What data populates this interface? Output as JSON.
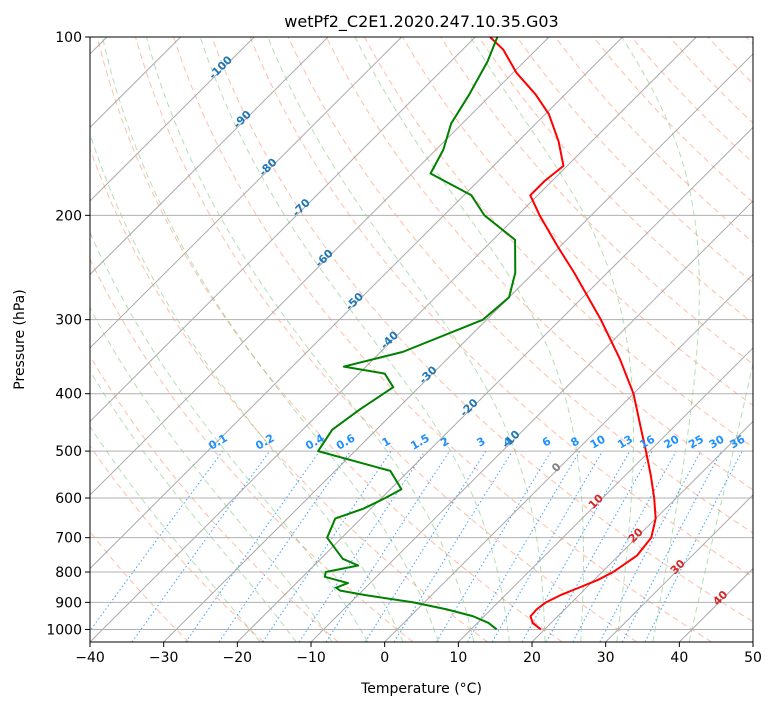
{
  "chart_data": {
    "type": "line",
    "title": "wetPf2_C2E1.2020.247.10.35.G03",
    "xlabel": "Temperature (°C)",
    "ylabel": "Pressure (hPa)",
    "xlim": [
      -40,
      50
    ],
    "ylim": [
      1050,
      100
    ],
    "y_scale": "log",
    "x_ticks": [
      -40,
      -30,
      -20,
      -10,
      0,
      10,
      20,
      30,
      40,
      50
    ],
    "x_tick_labels": [
      "−40",
      "−30",
      "−20",
      "−10",
      "0",
      "10",
      "20",
      "30",
      "40",
      "50"
    ],
    "y_ticks": [
      100,
      200,
      300,
      400,
      500,
      600,
      700,
      800,
      900,
      1000
    ],
    "y_tick_labels": [
      "100",
      "200",
      "300",
      "400",
      "500",
      "600",
      "700",
      "800",
      "900",
      "1000"
    ],
    "grid": true,
    "skew_factor": 35,
    "isotherm_labels": [
      "-100",
      "-90",
      "-80",
      "-70",
      "-60",
      "-50",
      "-40",
      "-30",
      "-20",
      "-10",
      "0",
      "10",
      "20",
      "30",
      "40"
    ],
    "mixing_ratio_labels": [
      "0.1",
      "0.2",
      "0.4",
      "0.6",
      "1",
      "1.5",
      "2",
      "3",
      "4",
      "6",
      "8",
      "10",
      "13",
      "16",
      "20",
      "25",
      "30",
      "36"
    ],
    "colors": {
      "temperature": "#ff0000",
      "dewpoint": "#008000",
      "isotherm_label_cold": "#1f77b4",
      "isotherm_label_zero": "#808080",
      "isotherm_label_warm": "#d62728",
      "mixing_ratio": "#1e90ff",
      "dry_adiabat": "#ff7f50",
      "moist_adiabat": "#2ca02c",
      "grid": "#b0b0b0"
    },
    "series": [
      {
        "name": "Temperature",
        "points": [
          [
            1000,
            19.5
          ],
          [
            975,
            17.5
          ],
          [
            950,
            16.3
          ],
          [
            925,
            16.2
          ],
          [
            900,
            16.5
          ],
          [
            875,
            17.5
          ],
          [
            850,
            19.0
          ],
          [
            825,
            20.5
          ],
          [
            800,
            21.5
          ],
          [
            775,
            22.0
          ],
          [
            750,
            22.5
          ],
          [
            700,
            22.0
          ],
          [
            650,
            20.0
          ],
          [
            600,
            17.0
          ],
          [
            550,
            13.5
          ],
          [
            500,
            9.5
          ],
          [
            450,
            5.0
          ],
          [
            400,
            0.0
          ],
          [
            350,
            -6.5
          ],
          [
            300,
            -14.5
          ],
          [
            250,
            -24.5
          ],
          [
            225,
            -30.5
          ],
          [
            200,
            -37.0
          ],
          [
            185,
            -41.0
          ],
          [
            175,
            -41.0
          ],
          [
            165,
            -40.5
          ],
          [
            150,
            -44.5
          ],
          [
            135,
            -49.5
          ],
          [
            125,
            -54.0
          ],
          [
            115,
            -59.5
          ],
          [
            105,
            -64.5
          ],
          [
            100,
            -68.0
          ]
        ]
      },
      {
        "name": "Dewpoint",
        "points": [
          [
            1000,
            13.5
          ],
          [
            975,
            11.5
          ],
          [
            950,
            8.5
          ],
          [
            925,
            4.0
          ],
          [
            900,
            -1.5
          ],
          [
            875,
            -9.0
          ],
          [
            860,
            -13.0
          ],
          [
            850,
            -14.0
          ],
          [
            835,
            -13.0
          ],
          [
            815,
            -17.0
          ],
          [
            800,
            -17.5
          ],
          [
            780,
            -14.0
          ],
          [
            760,
            -17.0
          ],
          [
            700,
            -22.0
          ],
          [
            650,
            -23.5
          ],
          [
            625,
            -21.0
          ],
          [
            600,
            -19.5
          ],
          [
            580,
            -18.5
          ],
          [
            540,
            -22.5
          ],
          [
            500,
            -35.0
          ],
          [
            460,
            -36.0
          ],
          [
            425,
            -35.0
          ],
          [
            390,
            -33.5
          ],
          [
            370,
            -36.5
          ],
          [
            360,
            -43.0
          ],
          [
            340,
            -37.0
          ],
          [
            300,
            -30.5
          ],
          [
            275,
            -30.0
          ],
          [
            250,
            -32.5
          ],
          [
            220,
            -37.0
          ],
          [
            200,
            -44.5
          ],
          [
            185,
            -49.0
          ],
          [
            170,
            -57.5
          ],
          [
            155,
            -59.0
          ],
          [
            140,
            -61.5
          ],
          [
            125,
            -63.0
          ],
          [
            110,
            -65.0
          ],
          [
            100,
            -67.0
          ]
        ]
      }
    ]
  }
}
